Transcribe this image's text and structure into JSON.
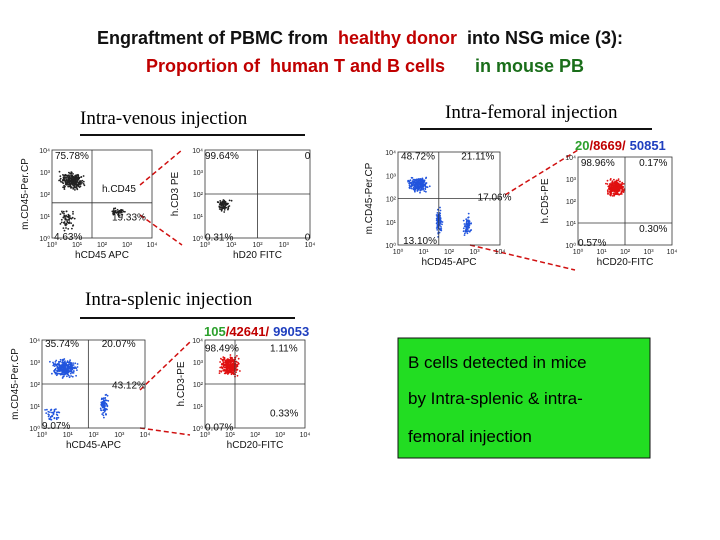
{
  "title": {
    "line1": [
      "Engraftment of PBMC from",
      "healthy donor",
      "into NSG mice (3):"
    ],
    "line2": [
      "Proportion of  human T and B cells",
      "in mouse PB"
    ]
  },
  "sections": [
    "Intra-venous injection",
    "Intra-femoral injection",
    "Intra-splenic injection"
  ],
  "axis_ticks": [
    "10⁰",
    "10¹",
    "10²",
    "10³",
    "10⁴"
  ],
  "panels": [
    {
      "y_label": "m.CD45-Per.CP",
      "x_label": "hCD45 APC",
      "quadrants": [
        "75.78%",
        "19.33%",
        "4.63%"
      ],
      "gate_label": "h.CD45"
    },
    {
      "y_label": "h.CD3 PE",
      "x_label": "hD20 FITC",
      "quadrants": [
        "99.64%",
        "0",
        "0.31%",
        "0"
      ]
    },
    {
      "y_label": "m.CD45-Per.CP",
      "x_label": "hCD45-APC",
      "quadrants": [
        "48.72%",
        "21.11%",
        "17.06%",
        "13.10%"
      ]
    },
    {
      "y_label": "h.CD5-PE",
      "x_label": "hCD20-FITC",
      "quadrants": [
        "98.96%",
        "0.17%",
        "0.30%",
        "0.57%"
      ]
    },
    {
      "y_label": "m.CD45-Per.CP",
      "x_label": "hCD45-APC",
      "quadrants": [
        "35.74%",
        "20.07%",
        "43.12%",
        "9.07%"
      ]
    },
    {
      "y_label": "h.CD3-PE",
      "x_label": "hCD20-FITC",
      "quadrants": [
        "98.49%",
        "1.11%",
        "0.33%",
        "0.07%"
      ]
    }
  ],
  "counts": [
    [
      "20",
      "/8669/",
      "50851"
    ],
    [
      "105",
      "/42641/",
      "99053"
    ]
  ],
  "note": [
    "B cells detected in mice",
    "by Intra-splenic & intra-",
    "femoral injection"
  ]
}
